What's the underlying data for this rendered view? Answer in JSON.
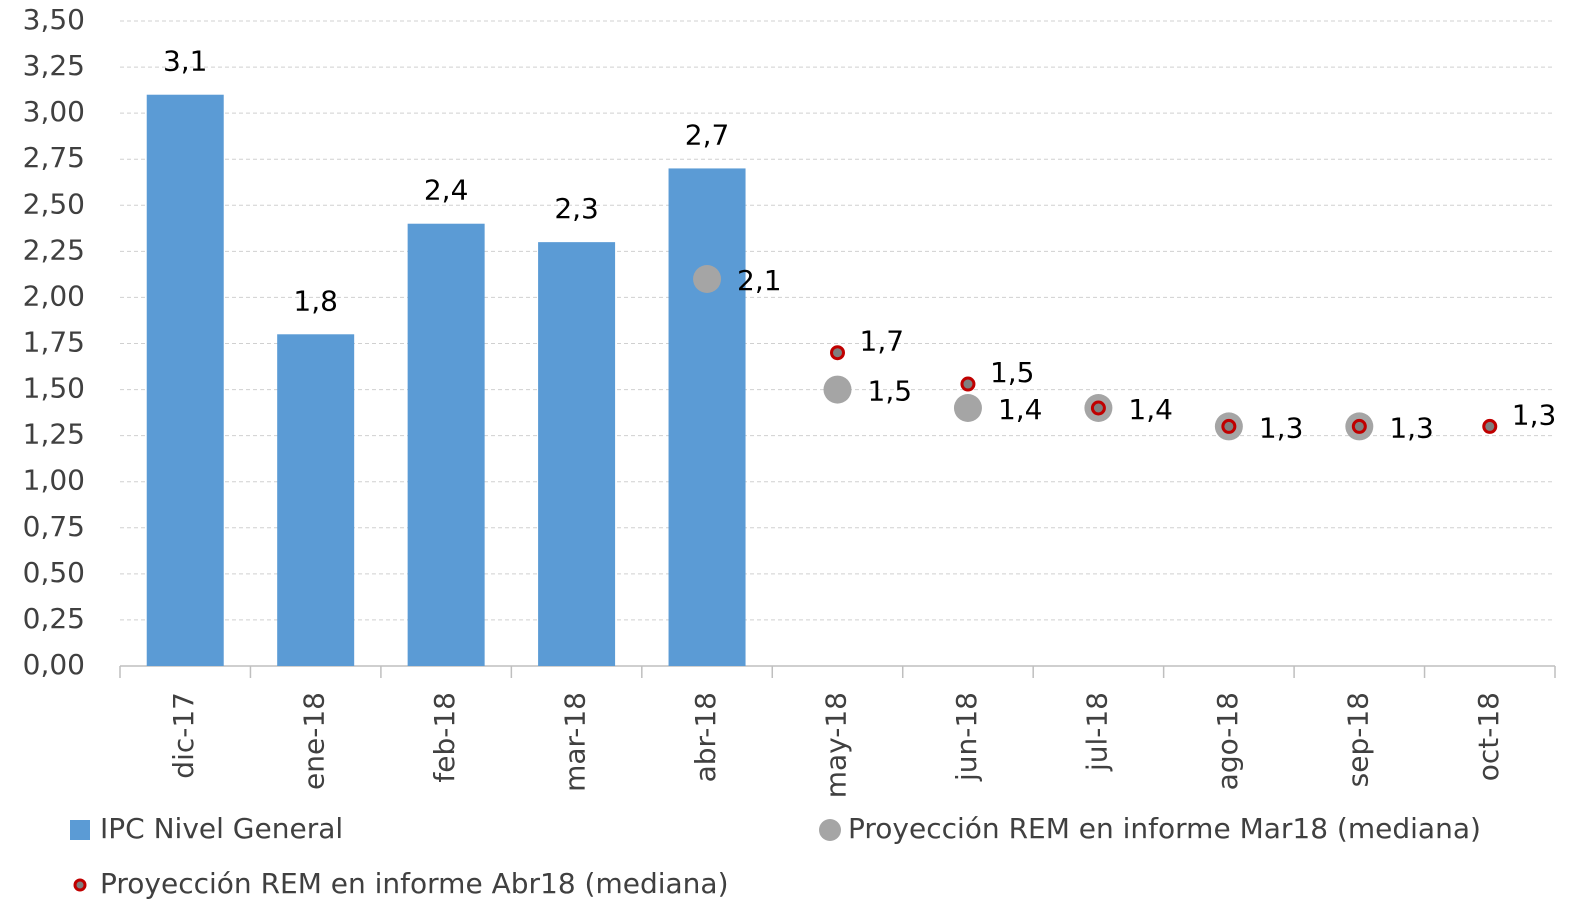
{
  "chart_data": {
    "type": "bar_scatter",
    "categories": [
      "dic-17",
      "ene-18",
      "feb-18",
      "mar-18",
      "abr-18",
      "may-18",
      "jun-18",
      "jul-18",
      "ago-18",
      "sep-18",
      "oct-18"
    ],
    "series": [
      {
        "name": "IPC Nivel General",
        "type": "bar",
        "color": "#5b9bd5",
        "values": [
          3.1,
          1.8,
          2.4,
          2.3,
          2.7,
          null,
          null,
          null,
          null,
          null,
          null
        ],
        "value_labels": [
          "3,1",
          "1,8",
          "2,4",
          "2,3",
          "2,7",
          null,
          null,
          null,
          null,
          null,
          null
        ]
      },
      {
        "name": "Proyección REM en informe Mar18 (mediana)",
        "type": "scatter",
        "color": "#a5a5a5",
        "values": [
          null,
          null,
          null,
          null,
          2.1,
          1.5,
          1.4,
          1.4,
          1.3,
          1.3,
          null
        ],
        "value_labels": [
          null,
          null,
          null,
          null,
          "2,1",
          "1,5",
          "1,4",
          "1,4",
          "1,3",
          "1,3",
          null
        ]
      },
      {
        "name": "Proyección REM en informe Abr18 (mediana)",
        "type": "scatter",
        "color": "#c00000",
        "values": [
          null,
          null,
          null,
          null,
          null,
          1.7,
          1.53,
          1.4,
          1.3,
          1.3,
          1.3
        ],
        "value_labels": [
          null,
          null,
          null,
          null,
          null,
          "1,7",
          "1,5",
          null,
          null,
          null,
          "1,3"
        ]
      }
    ],
    "ylim": [
      0,
      3.5
    ],
    "yticks": [
      {
        "value": 0,
        "label": "0,00"
      },
      {
        "value": 0.25,
        "label": "0,25"
      },
      {
        "value": 0.5,
        "label": "0,50"
      },
      {
        "value": 0.75,
        "label": "0,75"
      },
      {
        "value": 1,
        "label": "1,00"
      },
      {
        "value": 1.25,
        "label": "1,25"
      },
      {
        "value": 1.5,
        "label": "1,50"
      },
      {
        "value": 1.75,
        "label": "1,75"
      },
      {
        "value": 2,
        "label": "2,00"
      },
      {
        "value": 2.25,
        "label": "2,25"
      },
      {
        "value": 2.5,
        "label": "2,50"
      },
      {
        "value": 2.75,
        "label": "2,75"
      },
      {
        "value": 3,
        "label": "3,00"
      },
      {
        "value": 3.25,
        "label": "3,25"
      },
      {
        "value": 3.5,
        "label": "3,50"
      }
    ],
    "grid": true,
    "legend": "bottom"
  }
}
